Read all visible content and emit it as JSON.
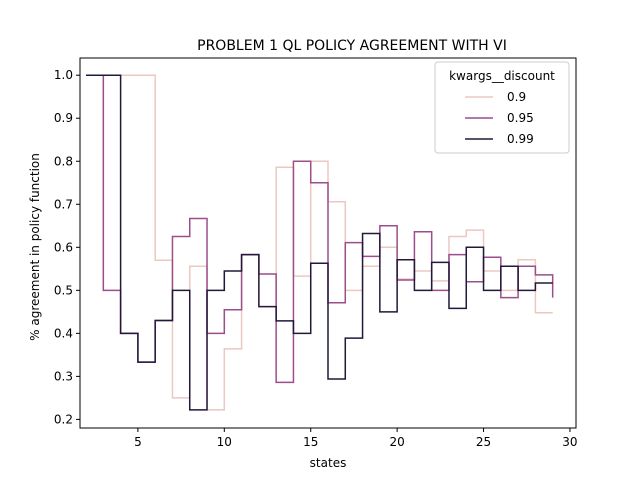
{
  "chart_data": {
    "type": "line",
    "drawstyle": "steps",
    "title": "PROBLEM 1 QL POLICY AGREEMENT WITH VI",
    "xlabel": "states",
    "ylabel": "% agreement in policy function",
    "xlim": [
      1.65,
      30.35
    ],
    "ylim": [
      0.18,
      1.04
    ],
    "xticks": [
      5,
      10,
      15,
      20,
      25,
      30
    ],
    "yticks": [
      0.2,
      0.3,
      0.4,
      0.5,
      0.6,
      0.7,
      0.8,
      0.9,
      1.0
    ],
    "xtick_labels": [
      "5",
      "10",
      "15",
      "20",
      "25",
      "30"
    ],
    "ytick_labels": [
      "0.2",
      "0.3",
      "0.4",
      "0.5",
      "0.6",
      "0.7",
      "0.8",
      "0.9",
      "1.0"
    ],
    "grid": false,
    "legend": {
      "title": "kwargs__discount",
      "placement": "top-right"
    },
    "x": [
      2,
      3,
      4,
      5,
      6,
      7,
      8,
      9,
      10,
      11,
      12,
      13,
      14,
      15,
      16,
      17,
      18,
      19,
      20,
      21,
      22,
      23,
      24,
      25,
      26,
      27,
      28,
      29
    ],
    "series": [
      {
        "name": "0.9",
        "color": "#ecc8c0",
        "values": [
          1.0,
          1.0,
          1.0,
          1.0,
          0.57,
          0.25,
          0.556,
          0.222,
          0.364,
          0.583,
          0.462,
          0.786,
          0.533,
          0.8,
          0.706,
          0.5,
          0.556,
          0.6,
          0.526,
          0.545,
          0.522,
          0.625,
          0.64,
          0.545,
          0.5,
          0.571,
          0.448,
          0.448
        ]
      },
      {
        "name": "0.95",
        "color": "#9b4e8a",
        "values": [
          1.0,
          0.5,
          0.4,
          0.333,
          0.43,
          0.625,
          0.667,
          0.4,
          0.455,
          0.583,
          0.538,
          0.286,
          0.8,
          0.75,
          0.471,
          0.611,
          0.579,
          0.65,
          0.524,
          0.636,
          0.5,
          0.583,
          0.52,
          0.577,
          0.483,
          0.556,
          0.536,
          0.483
        ]
      },
      {
        "name": "0.99",
        "color": "#21183a",
        "values": [
          1.0,
          1.0,
          0.4,
          0.333,
          0.43,
          0.5,
          0.222,
          0.5,
          0.545,
          0.583,
          0.462,
          0.429,
          0.4,
          0.563,
          0.294,
          0.389,
          0.632,
          0.45,
          0.571,
          0.5,
          0.565,
          0.458,
          0.6,
          0.5,
          0.556,
          0.5,
          0.517,
          0.517
        ]
      }
    ]
  }
}
